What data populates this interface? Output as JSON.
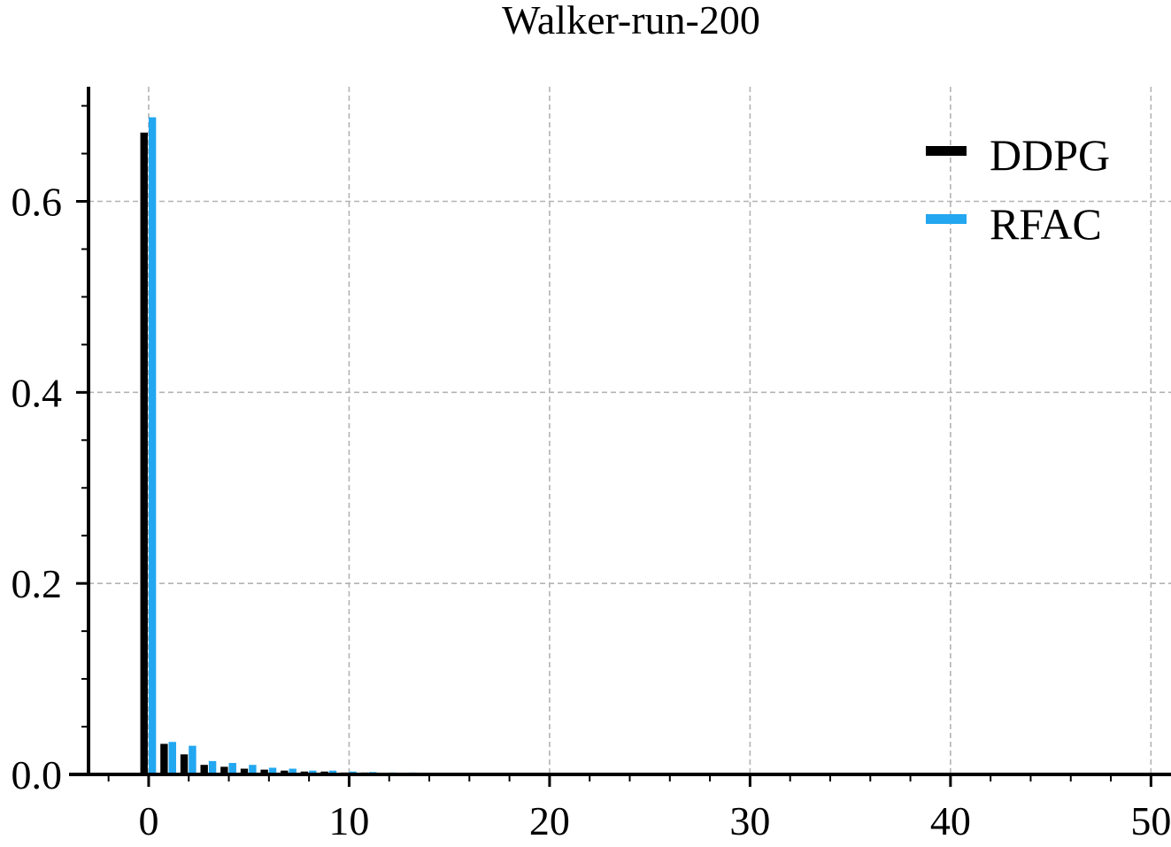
{
  "chart_data": {
    "type": "bar",
    "title": "Walker-run-200",
    "xlabel": "",
    "ylabel": "",
    "xlim": [
      -3,
      51
    ],
    "ylim": [
      0,
      0.72
    ],
    "x_ticks": [
      0,
      10,
      20,
      30,
      40,
      50
    ],
    "y_ticks": [
      0.0,
      0.2,
      0.4,
      0.6
    ],
    "x_tick_labels": [
      "0",
      "10",
      "20",
      "30",
      "40",
      "50"
    ],
    "y_tick_labels": [
      "0.0",
      "0.2",
      "0.4",
      "0.6"
    ],
    "grid": true,
    "legend": "top-right",
    "x": [
      0,
      1,
      2,
      3,
      4,
      5,
      6,
      7,
      8,
      9,
      10,
      11,
      12,
      13,
      14,
      15,
      16,
      17,
      18,
      19,
      20,
      21,
      22,
      23,
      24,
      25,
      26,
      27,
      28,
      29,
      30,
      31,
      32,
      33,
      34,
      35,
      36,
      37,
      38,
      39,
      40,
      41,
      42,
      43,
      44,
      45,
      46,
      47,
      48,
      49,
      50
    ],
    "series": [
      {
        "name": "DDPG",
        "color": "#000000",
        "values": [
          0.672,
          0.032,
          0.021,
          0.01,
          0.008,
          0.006,
          0.005,
          0.004,
          0.003,
          0.003,
          0.002,
          0.002,
          0.0015,
          0.0012,
          0.001,
          0.0008,
          0.0006,
          0.0005,
          0.0004,
          0.0003,
          0.0002,
          0.0002,
          0.0001,
          0.0001,
          0.0001,
          0,
          0,
          0,
          0,
          0,
          0,
          0,
          0,
          0,
          0,
          0,
          0,
          0,
          0,
          0,
          0,
          0,
          0,
          0,
          0,
          0,
          0,
          0,
          0,
          0,
          0
        ]
      },
      {
        "name": "RFAC",
        "color": "#22a7f0",
        "values": [
          0.688,
          0.034,
          0.03,
          0.014,
          0.012,
          0.01,
          0.007,
          0.006,
          0.004,
          0.004,
          0.003,
          0.0025,
          0.002,
          0.002,
          0.0015,
          0.001,
          0.0008,
          0.0006,
          0.0005,
          0.0004,
          0.0003,
          0.0002,
          0.0002,
          0.0001,
          0.0001,
          0,
          0,
          0,
          0,
          0,
          0,
          0,
          0,
          0,
          0,
          0,
          0,
          0,
          0,
          0,
          0,
          0,
          0,
          0,
          0,
          0,
          0,
          0,
          0,
          0,
          0
        ]
      }
    ]
  }
}
